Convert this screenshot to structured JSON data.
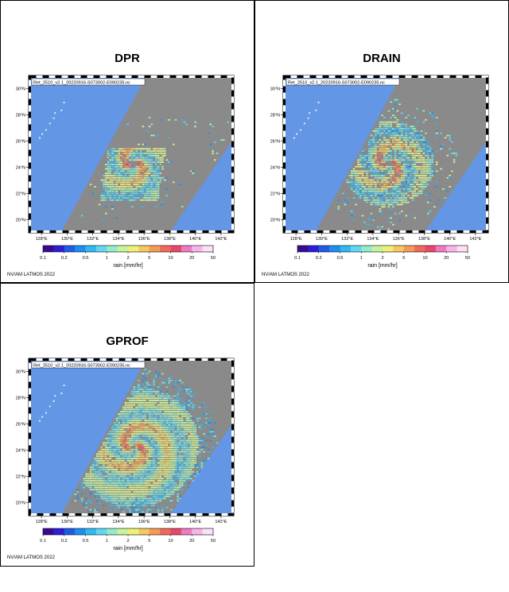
{
  "panels": [
    {
      "title": "DPR",
      "file_label": "Ret_2510_v2.1_20220916-S073002-E090235.nc",
      "footer": "NV/AM LATMOS 2022",
      "variant": "dpr"
    },
    {
      "title": "DRAIN",
      "file_label": "Ret_2510_v2.1_20220916-S073002-E090235.nc",
      "footer": "NV/AM LATMOS 2022",
      "variant": "drain"
    },
    {
      "title": "GPROF",
      "file_label": "Ret_2510_v2.1_20220916-S073002-E090235.nc",
      "footer": "NV/AM LATMOS 2022",
      "variant": "gprof"
    }
  ],
  "map": {
    "lat_labels": [
      "20°N",
      "22°N",
      "24°N",
      "26°N",
      "28°N",
      "30°N"
    ],
    "lon_labels": [
      "128°E",
      "130°E",
      "132°E",
      "134°E",
      "136°E",
      "138°E",
      "140°E",
      "142°E"
    ],
    "lat_range": [
      19,
      31
    ],
    "lon_range": [
      127,
      143
    ]
  },
  "colorbar": {
    "label": "rain [mm/hr]",
    "ticks": [
      "0.1",
      "0.2",
      "0.5",
      "1",
      "2",
      "5",
      "10",
      "20",
      "50"
    ],
    "colors": [
      "#3a0a8f",
      "#2a1fd6",
      "#1f5be8",
      "#1e8ef0",
      "#2fb8f2",
      "#63d7ef",
      "#92ecc9",
      "#c7f39a",
      "#eef07a",
      "#f7c760",
      "#f59a57",
      "#ef6a5a",
      "#e8466b",
      "#f07ac2",
      "#f8b4ea",
      "#fde0f6"
    ]
  },
  "colors": {
    "ocean": "#6496e6",
    "swath": "#8a8a8a",
    "land": "#e8e8e8"
  }
}
